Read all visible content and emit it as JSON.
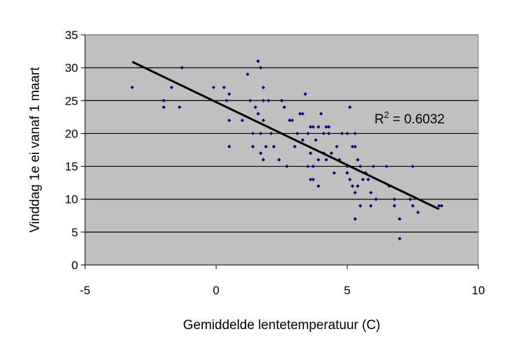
{
  "chart_data": {
    "type": "scatter",
    "xlabel": "Gemiddelde lentetemperatuur (C)",
    "ylabel": "Vinddag 1e ei vanaf 1 maart",
    "xlim": [
      -5,
      10
    ],
    "ylim": [
      0,
      35
    ],
    "xticks": [
      "-5",
      "0",
      "5",
      "10"
    ],
    "yticks": [
      "0",
      "5",
      "10",
      "15",
      "20",
      "25",
      "30",
      "35"
    ],
    "grid": "horizontal",
    "background": "#c0c0c0",
    "marker_color": "#000080",
    "trendline": {
      "type": "linear",
      "x_start": -3.2,
      "y_start": 30.9,
      "x_end": 8.5,
      "y_end": 8.5,
      "color": "#000000"
    },
    "annotation": {
      "r2_prefix": "R",
      "r2_sup": "2",
      "r2_suffix": " = 0.6032"
    },
    "series": [
      {
        "points": [
          [
            -3.2,
            27
          ],
          [
            -2.0,
            25
          ],
          [
            -2.0,
            24
          ],
          [
            -1.7,
            27
          ],
          [
            -1.4,
            24
          ],
          [
            -1.3,
            30
          ],
          [
            -0.1,
            27
          ],
          [
            0.3,
            27
          ],
          [
            0.4,
            25
          ],
          [
            0.5,
            26
          ],
          [
            0.5,
            22
          ],
          [
            0.5,
            18
          ],
          [
            1.0,
            22
          ],
          [
            1.2,
            29
          ],
          [
            1.3,
            25
          ],
          [
            1.4,
            20
          ],
          [
            1.4,
            18
          ],
          [
            1.5,
            24
          ],
          [
            1.6,
            31
          ],
          [
            1.6,
            23
          ],
          [
            1.7,
            20
          ],
          [
            1.7,
            17
          ],
          [
            1.7,
            30
          ],
          [
            1.8,
            27
          ],
          [
            1.8,
            25
          ],
          [
            1.8,
            22
          ],
          [
            1.9,
            18
          ],
          [
            1.8,
            16
          ],
          [
            2.0,
            25
          ],
          [
            2.1,
            20
          ],
          [
            2.2,
            18
          ],
          [
            2.4,
            16
          ],
          [
            2.5,
            25
          ],
          [
            2.6,
            24
          ],
          [
            2.7,
            15
          ],
          [
            2.8,
            22
          ],
          [
            2.9,
            22
          ],
          [
            3.0,
            18
          ],
          [
            3.1,
            20
          ],
          [
            3.2,
            23
          ],
          [
            3.3,
            23
          ],
          [
            3.3,
            19
          ],
          [
            3.4,
            26
          ],
          [
            3.5,
            20
          ],
          [
            3.5,
            15
          ],
          [
            3.6,
            21
          ],
          [
            3.6,
            17
          ],
          [
            3.6,
            13
          ],
          [
            3.7,
            21
          ],
          [
            3.7,
            15
          ],
          [
            3.7,
            13
          ],
          [
            3.8,
            19
          ],
          [
            3.9,
            21
          ],
          [
            3.9,
            16
          ],
          [
            3.9,
            12
          ],
          [
            4.0,
            23
          ],
          [
            4.1,
            20
          ],
          [
            4.1,
            17
          ],
          [
            4.2,
            21
          ],
          [
            4.2,
            16
          ],
          [
            4.3,
            21
          ],
          [
            4.3,
            20
          ],
          [
            4.4,
            17
          ],
          [
            4.5,
            14
          ],
          [
            4.6,
            18
          ],
          [
            4.7,
            16
          ],
          [
            4.8,
            20
          ],
          [
            5.0,
            20
          ],
          [
            5.0,
            15
          ],
          [
            5.0,
            14
          ],
          [
            5.1,
            13
          ],
          [
            5.1,
            24
          ],
          [
            5.2,
            18
          ],
          [
            5.2,
            12
          ],
          [
            5.3,
            20
          ],
          [
            5.3,
            18
          ],
          [
            5.3,
            11
          ],
          [
            5.3,
            7
          ],
          [
            5.4,
            16
          ],
          [
            5.4,
            12
          ],
          [
            5.5,
            15
          ],
          [
            5.5,
            9
          ],
          [
            5.6,
            13
          ],
          [
            5.7,
            14
          ],
          [
            5.8,
            13
          ],
          [
            5.9,
            11
          ],
          [
            5.9,
            9
          ],
          [
            6.0,
            15
          ],
          [
            6.1,
            10
          ],
          [
            6.5,
            15
          ],
          [
            6.6,
            12
          ],
          [
            6.8,
            10
          ],
          [
            6.8,
            9
          ],
          [
            7.0,
            7
          ],
          [
            7.0,
            4
          ],
          [
            7.4,
            10
          ],
          [
            7.5,
            15
          ],
          [
            7.5,
            9
          ],
          [
            7.7,
            8
          ],
          [
            8.5,
            9
          ],
          [
            8.6,
            9
          ]
        ]
      }
    ]
  }
}
